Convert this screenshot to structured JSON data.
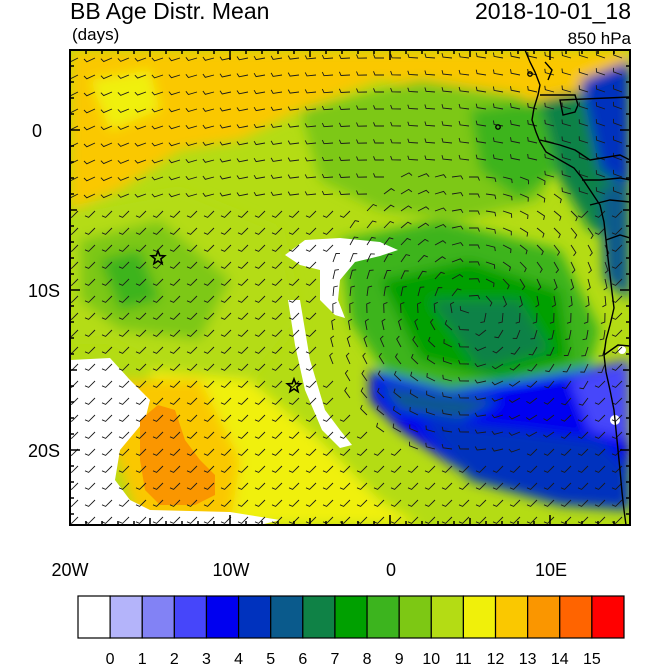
{
  "header": {
    "title": "BB Age Distr. Mean",
    "units": "(days)",
    "datetime": "2018-10-01_18",
    "level": "850 hPa"
  },
  "map": {
    "x_ticks": [
      "20W",
      "10W",
      "0",
      "10E"
    ],
    "y_ticks": [
      "0",
      "10S",
      "20S"
    ],
    "markers": [
      {
        "name": "star-marker-west",
        "lon": -14.5,
        "lat": -8
      },
      {
        "name": "star-marker-south",
        "lon": -6,
        "lat": -16
      }
    ]
  },
  "colorbar": {
    "labels": [
      "0",
      "1",
      "2",
      "3",
      "4",
      "5",
      "6",
      "7",
      "8",
      "9",
      "10",
      "11",
      "12",
      "13",
      "14",
      "15"
    ],
    "colors": [
      "#ffffff",
      "#b4b4fa",
      "#8282f5",
      "#4646fa",
      "#0000f0",
      "#0032be",
      "#0a5a8c",
      "#0f8246",
      "#00a000",
      "#3cb41e",
      "#7dc814",
      "#b4dc14",
      "#f0f00a",
      "#fac800",
      "#fa9600",
      "#ff6400",
      "#ff0000"
    ]
  }
}
